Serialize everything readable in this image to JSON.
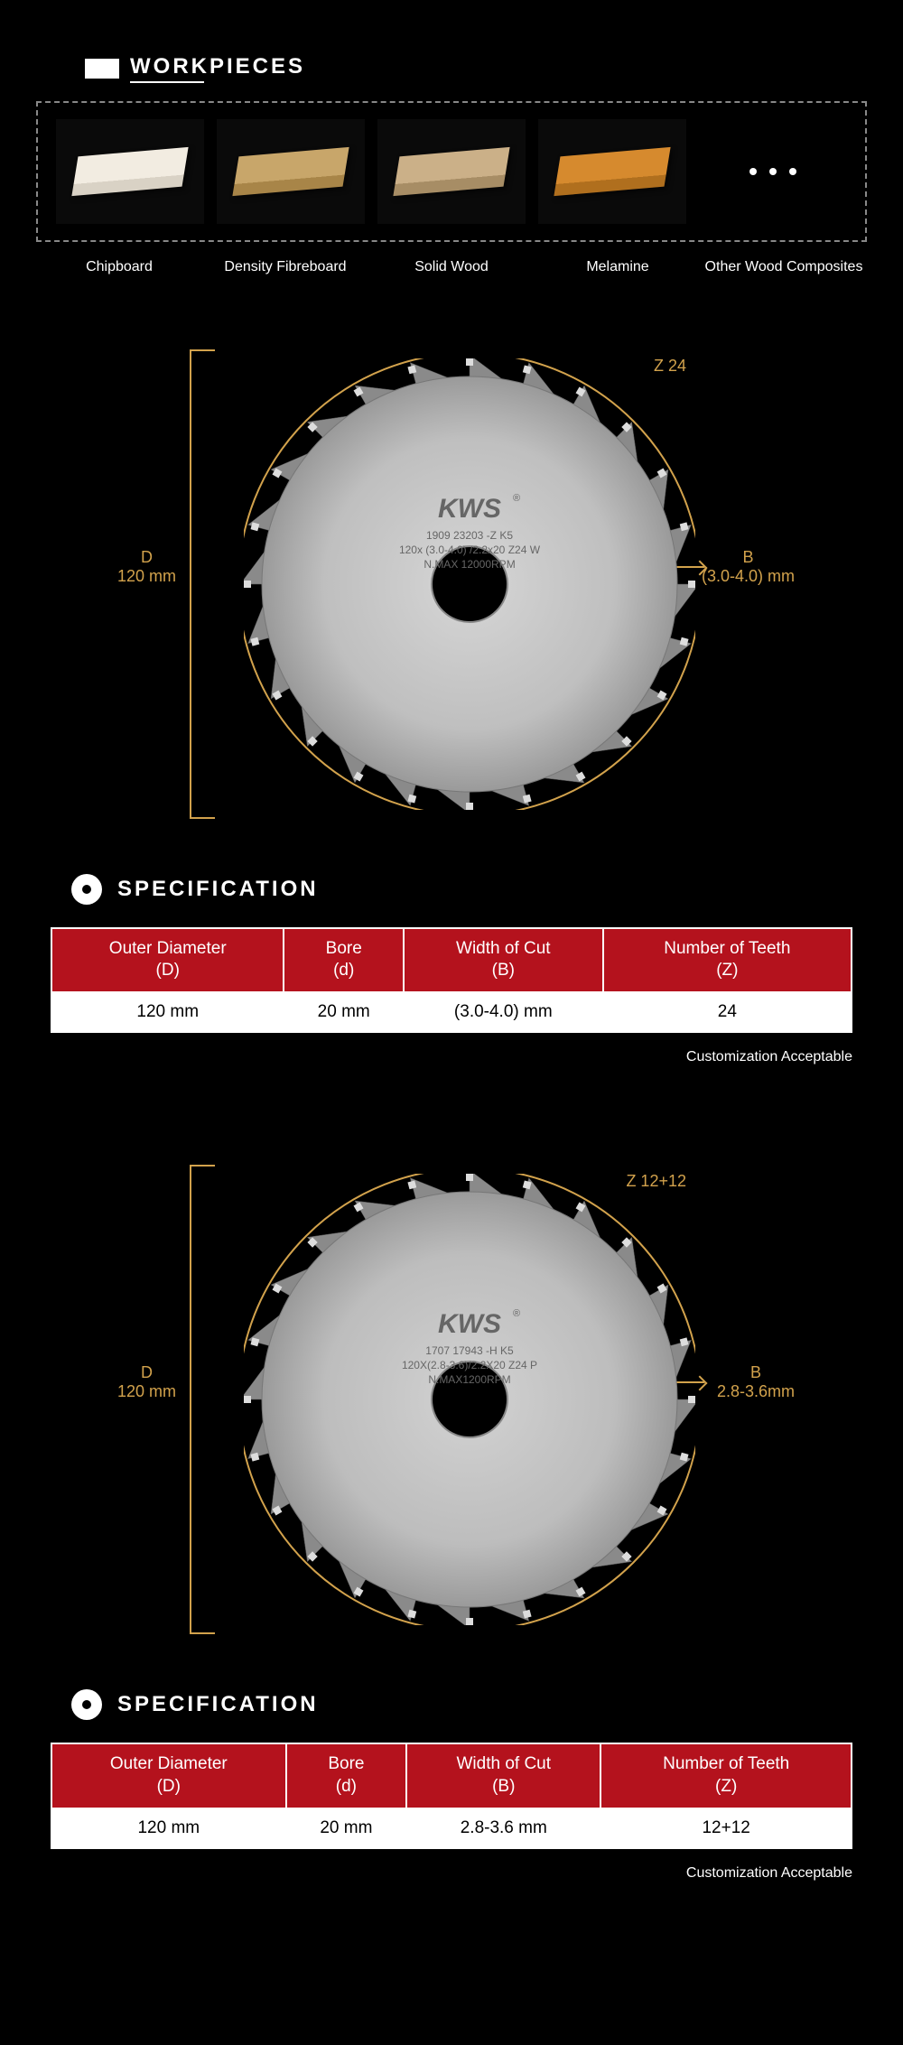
{
  "workpieces": {
    "title": "WORKPIECES",
    "items": [
      {
        "label": "Chipboard",
        "color": "#f2ece1",
        "side": "#d9d2c5"
      },
      {
        "label": "Density Fibreboard",
        "color": "#c8a66a",
        "side": "#a88548"
      },
      {
        "label": "Solid Wood",
        "color": "#cbb088",
        "side": "#a78d65"
      },
      {
        "label": "Melamine",
        "color": "#d68a2e",
        "side": "#b06f1e"
      },
      {
        "label": "Other Wood Composites",
        "dots": true
      }
    ]
  },
  "accent_color": "#d2a24c",
  "brand": "KWS",
  "blades": [
    {
      "teeth": 24,
      "z_label": "Z 24",
      "d_label1": "D",
      "d_label2": "120 mm",
      "bore_label1": "d",
      "bore_label2": "20 mm",
      "b_label1": "B",
      "b_label2": "(3.0-4.0) mm",
      "etch1": "1909 23203 -Z K5",
      "etch2": "120x  (3.0-4.0)  /2.2x20 Z24 W",
      "etch3": "N.MAX 12000RPM",
      "spec_title": "SPECIFICATION",
      "columns": [
        {
          "h1": "Outer Diameter",
          "h2": "(D)"
        },
        {
          "h1": "Bore",
          "h2": "(d)"
        },
        {
          "h1": "Width of Cut",
          "h2": "(B)"
        },
        {
          "h1": "Number of Teeth",
          "h2": "(Z)"
        }
      ],
      "row": [
        "120 mm",
        "20 mm",
        "(3.0-4.0) mm",
        "24"
      ],
      "note": "Customization Acceptable",
      "disc_color": "#bfbfbf",
      "hub_color": "#d6d6d6"
    },
    {
      "teeth": 24,
      "z_label": "Z 12+12",
      "d_label1": "D",
      "d_label2": "120 mm",
      "bore_label1": "d",
      "bore_label2": "20 mm",
      "b_label1": "B",
      "b_label2": "2.8-3.6mm",
      "etch1": "1707 17943 -H K5",
      "etch2": "120X(2.8-3.6)/2.2X20 Z24 P",
      "etch3": "N.MAX1200RPM",
      "spec_title": "SPECIFICATION",
      "columns": [
        {
          "h1": "Outer Diameter",
          "h2": "(D)"
        },
        {
          "h1": "Bore",
          "h2": "(d)"
        },
        {
          "h1": "Width of Cut",
          "h2": "(B)"
        },
        {
          "h1": "Number of Teeth",
          "h2": "(Z)"
        }
      ],
      "row": [
        "120 mm",
        "20 mm",
        "2.8-3.6 mm",
        "12+12"
      ],
      "note": "Customization Acceptable",
      "disc_color": "#bdbdbd",
      "hub_color": "#d2d2d2"
    }
  ]
}
